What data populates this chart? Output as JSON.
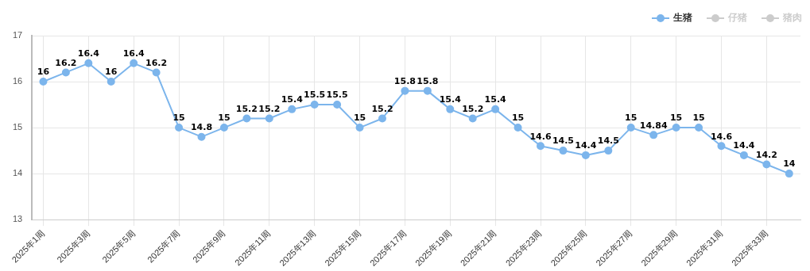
{
  "chart_data": {
    "type": "line",
    "categories": [
      "2025年1周",
      null,
      "2025年3周",
      null,
      "2025年5周",
      null,
      "2025年7周",
      null,
      "2025年9周",
      null,
      "2025年11周",
      null,
      "2025年13周",
      null,
      "2025年15周",
      null,
      "2025年17周",
      null,
      "2025年19周",
      null,
      "2025年21周",
      null,
      "2025年23周",
      null,
      "2025年25周",
      null,
      "2025年27周",
      null,
      "2025年29周",
      null,
      "2025年31周",
      null,
      "2025年33周",
      null
    ],
    "series": [
      {
        "name": "生猪",
        "color": "#7cb5ec",
        "values": [
          16,
          16.2,
          16.4,
          16,
          16.4,
          16.2,
          15,
          14.8,
          15,
          15.2,
          15.2,
          15.4,
          15.5,
          15.5,
          15,
          15.2,
          15.8,
          15.8,
          15.4,
          15.2,
          15.4,
          15,
          14.6,
          14.5,
          14.4,
          14.5,
          15,
          14.84,
          15,
          15,
          14.6,
          14.4,
          14.2,
          14
        ]
      },
      {
        "name": "仔猪",
        "color": "#cccccc",
        "values": [
          null,
          null,
          null,
          null,
          null,
          null,
          null,
          null,
          null,
          null,
          null,
          null,
          null,
          null,
          null,
          null,
          null,
          null,
          null,
          null,
          null,
          null,
          null,
          null,
          null,
          null,
          null,
          null,
          null,
          null,
          null,
          null,
          null,
          null
        ]
      },
      {
        "name": "猪肉",
        "color": "#cccccc",
        "values": [
          null,
          null,
          null,
          null,
          null,
          null,
          null,
          null,
          null,
          null,
          null,
          null,
          null,
          null,
          null,
          null,
          null,
          null,
          null,
          null,
          null,
          null,
          null,
          null,
          null,
          null,
          null,
          null,
          null,
          null,
          null,
          null,
          null,
          null
        ]
      }
    ],
    "ylim": [
      13,
      17
    ],
    "yticks": [
      13,
      14,
      15,
      16,
      17
    ],
    "grid": true,
    "legend": "top right",
    "marker": "circle",
    "data_labels": true
  }
}
